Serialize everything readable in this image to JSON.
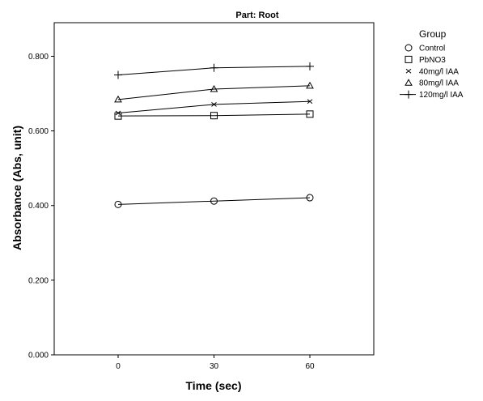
{
  "chart_data": {
    "type": "line",
    "title": "Part: Root",
    "xlabel": "Time (sec)",
    "ylabel": "Absorbance (Abs, unit)",
    "x": [
      0,
      30,
      60
    ],
    "x_tick_labels": [
      "0",
      "30",
      "60"
    ],
    "xlim": [
      -20,
      80
    ],
    "ylim": [
      0,
      0.89
    ],
    "y_ticks": [
      0,
      0.2,
      0.4,
      0.6,
      0.8
    ],
    "y_tick_labels": [
      "0.000",
      "0.200",
      "0.400",
      "0.600",
      "0.800"
    ],
    "grid": false,
    "legend": {
      "title": "Group",
      "placement": "right"
    },
    "series": [
      {
        "name": "Control",
        "marker": "circle",
        "values": [
          0.403,
          0.412,
          0.421
        ]
      },
      {
        "name": "PbNO3",
        "marker": "square",
        "values": [
          0.64,
          0.641,
          0.645
        ]
      },
      {
        "name": "40mg/l IAA",
        "marker": "x",
        "values": [
          0.648,
          0.671,
          0.679
        ]
      },
      {
        "name": "80mg/l IAA",
        "marker": "triangle",
        "values": [
          0.684,
          0.712,
          0.721
        ]
      },
      {
        "name": "120mg/l IAA",
        "marker": "plus",
        "values": [
          0.75,
          0.769,
          0.773
        ]
      }
    ]
  }
}
